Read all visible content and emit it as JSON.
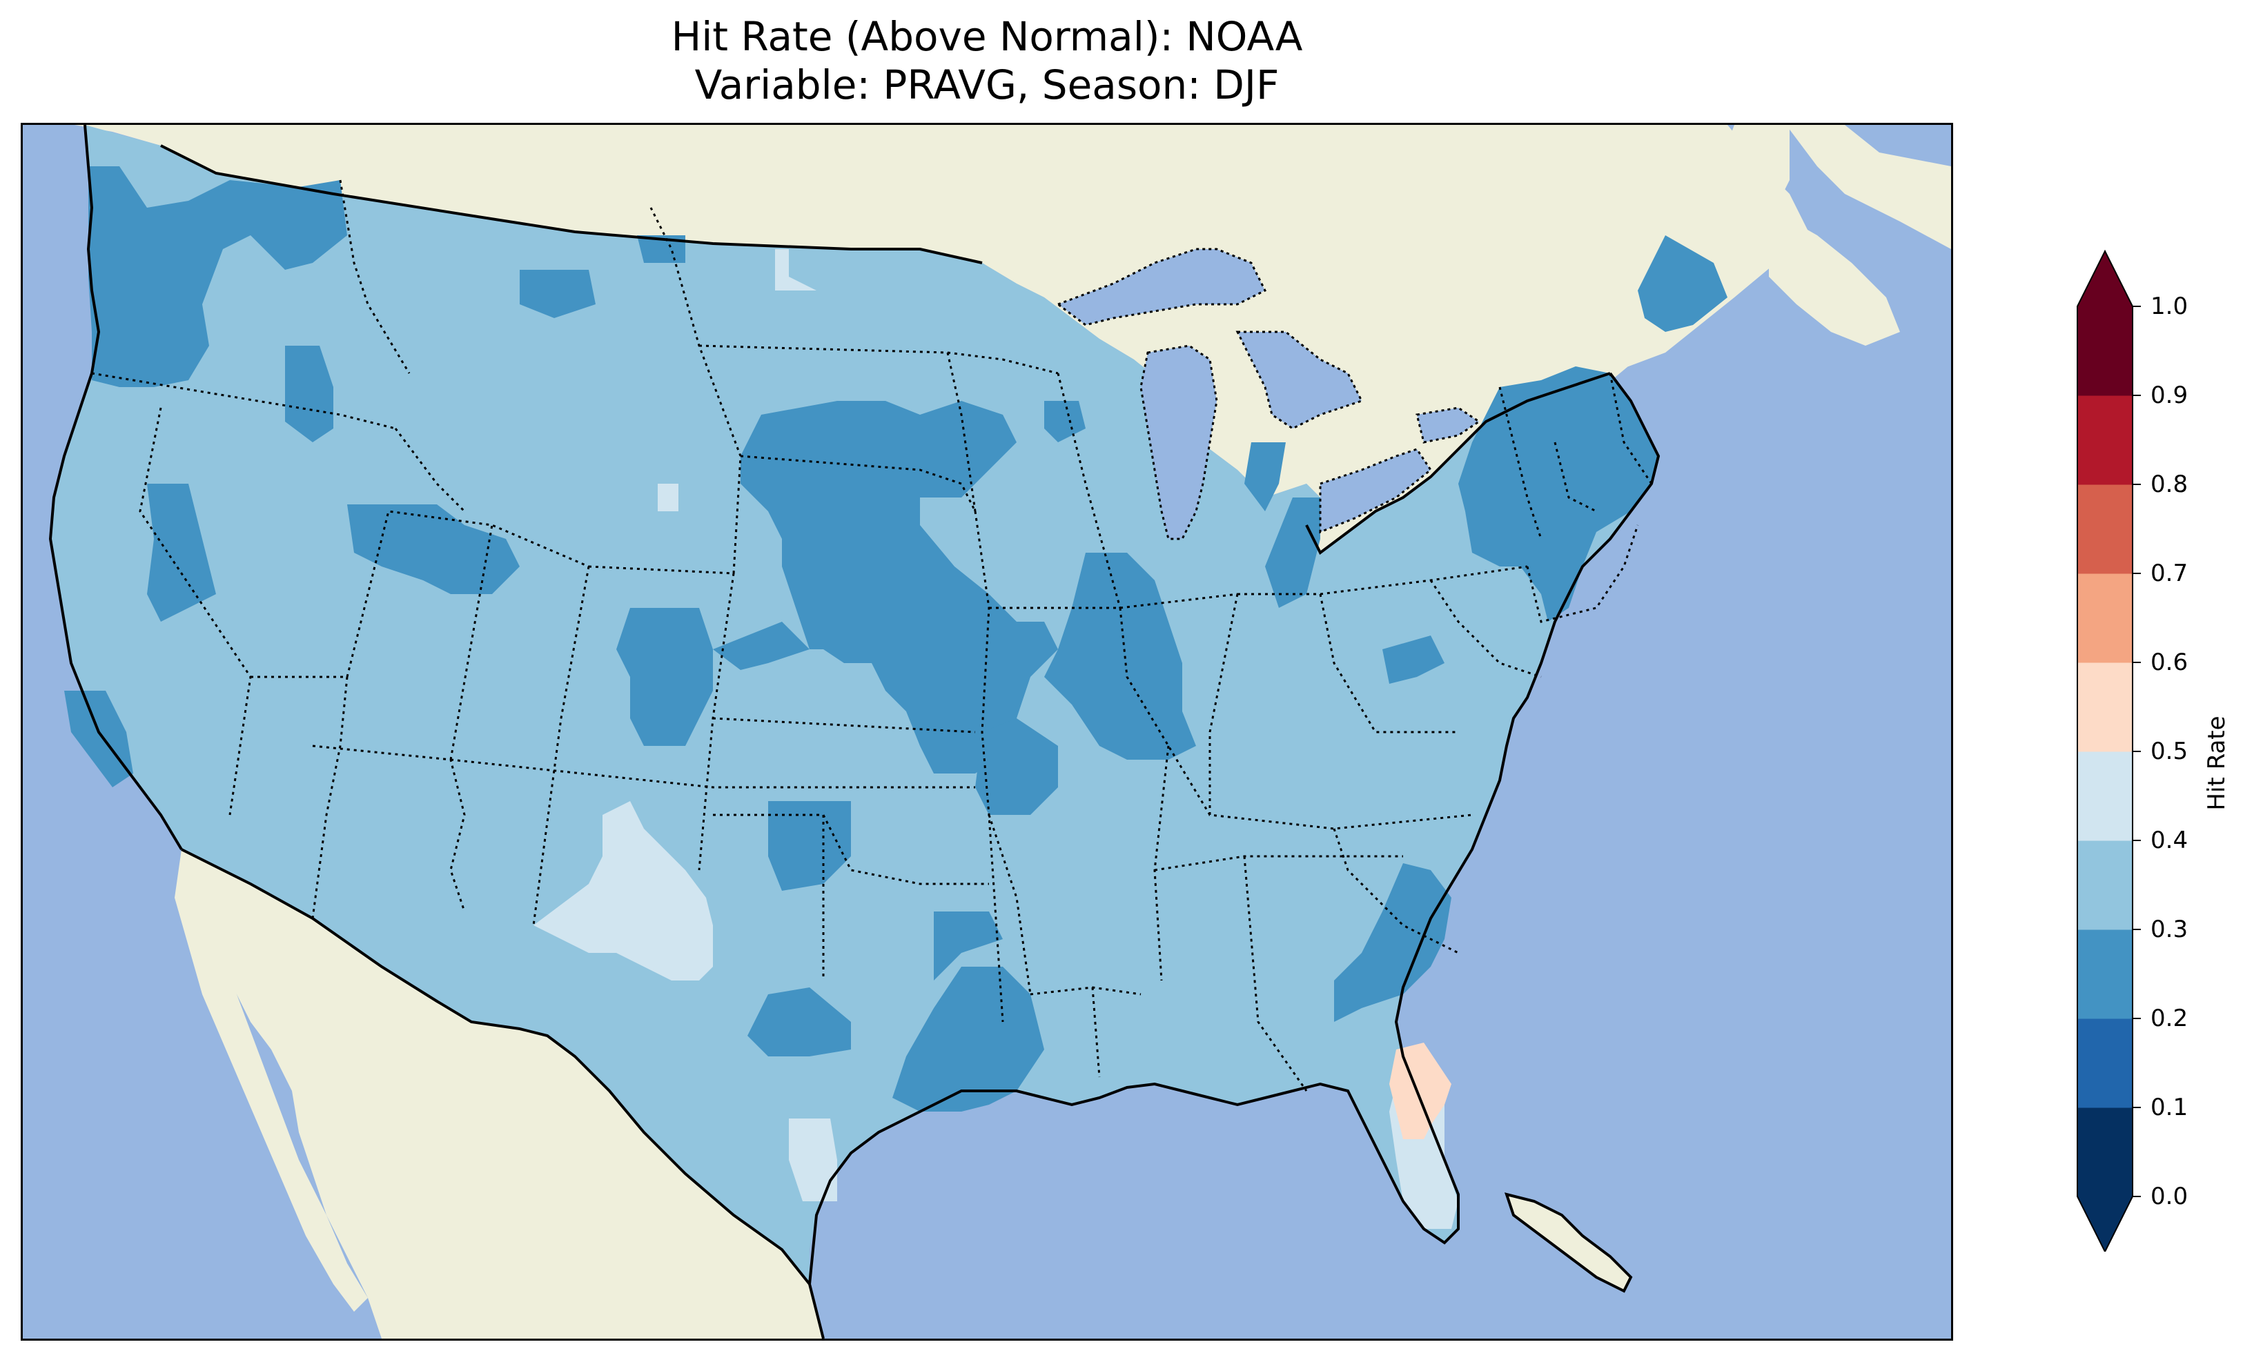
{
  "title": {
    "line1": "Hit Rate (Above Normal): NOAA",
    "line2": "Variable: PRAVG, Season: DJF"
  },
  "colors": {
    "ocean": "#97b6e1",
    "land": "#efefdb",
    "border": "#000000"
  },
  "chart_data": {
    "type": "heatmap",
    "title": "Hit Rate (Above Normal): NOAA\nVariable: PRAVG, Season: DJF",
    "colorbar": {
      "label": "Hit Rate",
      "range": [
        0.0,
        1.0
      ],
      "extend": "both",
      "levels": [
        0.0,
        0.1,
        0.2,
        0.3,
        0.4,
        0.5,
        0.6,
        0.7,
        0.8,
        0.9,
        1.0
      ],
      "tick_labels": [
        "0.0",
        "0.1",
        "0.2",
        "0.3",
        "0.4",
        "0.5",
        "0.6",
        "0.7",
        "0.8",
        "0.9",
        "1.0"
      ],
      "colors": [
        "#053061",
        "#2166ac",
        "#4393c3",
        "#92c5de",
        "#d1e5f0",
        "#fddbc7",
        "#f4a582",
        "#d6604d",
        "#b2182b",
        "#67001f"
      ],
      "under_color": "#053061",
      "over_color": "#67001f"
    },
    "regions": [
      {
        "region": "Most of CONUS (background)",
        "bin": "0.3-0.4"
      },
      {
        "region": "Pacific Northwest coast",
        "bin": "0.2-0.3"
      },
      {
        "region": "Central Plains / Nebraska",
        "bin": "0.2-0.3"
      },
      {
        "region": "Missouri / Illinois / Iowa",
        "bin": "0.2-0.3"
      },
      {
        "region": "New York / New England",
        "bin": "0.2-0.3"
      },
      {
        "region": "Georgia / Carolinas",
        "bin": "0.2-0.3"
      },
      {
        "region": "Louisiana / Arkansas",
        "bin": "0.2-0.3"
      },
      {
        "region": "Colorado",
        "bin": "0.2-0.3"
      },
      {
        "region": "Oklahoma",
        "bin": "0.2-0.3"
      },
      {
        "region": "New Mexico / West Texas",
        "bin": "0.4-0.5"
      },
      {
        "region": "South Texas",
        "bin": "0.4-0.5"
      },
      {
        "region": "South Florida",
        "bin": "0.4-0.5"
      },
      {
        "region": "Central Florida",
        "bin": "0.5-0.6"
      }
    ]
  }
}
